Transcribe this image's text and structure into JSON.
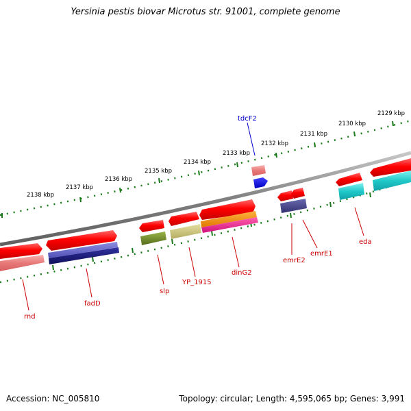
{
  "title": "Yersinia pestis biovar Microtus str. 91001, complete genome",
  "footer": {
    "accession": "Accession: NC_005810",
    "topology": "Topology: circular; Length: 4,595,065 bp; Genes: 3,991"
  },
  "scale": {
    "unit": "kbp",
    "labels": [
      "2138 kbp",
      "2137 kbp",
      "2136 kbp",
      "2135 kbp",
      "2134 kbp",
      "2133 kbp",
      "2132 kbp",
      "2131 kbp",
      "2130 kbp",
      "2129 kbp"
    ]
  },
  "genes": [
    {
      "name": "rnd",
      "color": "#cc0000"
    },
    {
      "name": "fadD",
      "color": "#cc0000"
    },
    {
      "name": "slp",
      "color": "#cc0000"
    },
    {
      "name": "YP_1915",
      "color": "#cc0000"
    },
    {
      "name": "dinG2",
      "color": "#cc0000"
    },
    {
      "name": "emrE2",
      "color": "#cc0000"
    },
    {
      "name": "emrE1",
      "color": "#cc0000"
    },
    {
      "name": "eda",
      "color": "#cc0000"
    },
    {
      "name": "tdcF2",
      "color": "#0000cc"
    }
  ],
  "colors": {
    "cds": "#ff1a1a",
    "cds_light": "#f08080",
    "backbone": "#808080",
    "scale_ticks": "#1a7a1a",
    "olive": "#6b8e23",
    "khaki": "#c8c27a",
    "orange": "#ff8c00",
    "magenta": "#ff1493",
    "slate": "#5b5bc8",
    "navy": "#1a1a7a",
    "cyan": "#20c8c8",
    "blue": "#0000ff"
  }
}
